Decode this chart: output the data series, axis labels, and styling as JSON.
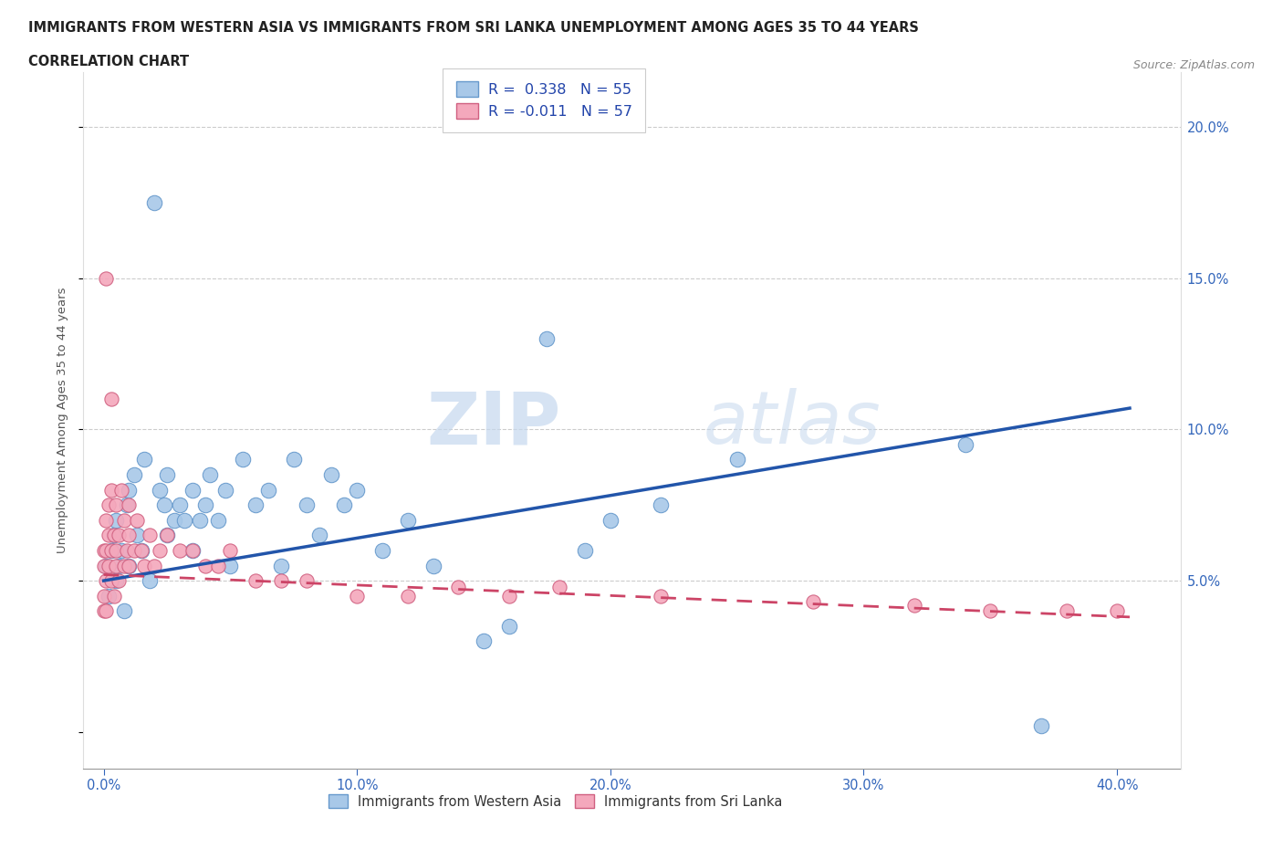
{
  "title_line1": "IMMIGRANTS FROM WESTERN ASIA VS IMMIGRANTS FROM SRI LANKA UNEMPLOYMENT AMONG AGES 35 TO 44 YEARS",
  "title_line2": "CORRELATION CHART",
  "source_text": "Source: ZipAtlas.com",
  "ylabel": "Unemployment Among Ages 35 to 44 years",
  "x_tick_labels": [
    "0.0%",
    "10.0%",
    "20.0%",
    "30.0%",
    "40.0%"
  ],
  "x_tick_values": [
    0.0,
    0.1,
    0.2,
    0.3,
    0.4
  ],
  "y_tick_labels": [
    "5.0%",
    "10.0%",
    "15.0%",
    "20.0%"
  ],
  "y_tick_values": [
    0.05,
    0.1,
    0.15,
    0.2
  ],
  "xlim": [
    -0.008,
    0.425
  ],
  "ylim": [
    -0.012,
    0.218
  ],
  "western_asia_color": "#a8c8e8",
  "western_asia_edge_color": "#6699cc",
  "sri_lanka_color": "#f4a8bc",
  "sri_lanka_edge_color": "#d06080",
  "trend_blue_color": "#2255aa",
  "trend_pink_color": "#cc4466",
  "legend_r1": "R =  0.338   N = 55",
  "legend_r2": "R = -0.011   N = 57",
  "legend_label1": "Immigrants from Western Asia",
  "legend_label2": "Immigrants from Sri Lanka",
  "watermark_zip": "ZIP",
  "watermark_atlas": "atlas",
  "wa_trend_start_y": 0.05,
  "wa_trend_end_y": 0.107,
  "sl_trend_start_y": 0.052,
  "sl_trend_end_y": 0.038,
  "western_asia_x": [
    0.001,
    0.002,
    0.003,
    0.004,
    0.005,
    0.005,
    0.006,
    0.007,
    0.008,
    0.009,
    0.01,
    0.01,
    0.012,
    0.013,
    0.015,
    0.016,
    0.018,
    0.02,
    0.022,
    0.024,
    0.025,
    0.025,
    0.028,
    0.03,
    0.032,
    0.035,
    0.035,
    0.038,
    0.04,
    0.042,
    0.045,
    0.048,
    0.05,
    0.055,
    0.06,
    0.065,
    0.07,
    0.075,
    0.08,
    0.085,
    0.09,
    0.095,
    0.1,
    0.11,
    0.12,
    0.13,
    0.15,
    0.16,
    0.175,
    0.19,
    0.2,
    0.22,
    0.25,
    0.34,
    0.37
  ],
  "western_asia_y": [
    0.055,
    0.045,
    0.06,
    0.065,
    0.05,
    0.07,
    0.055,
    0.06,
    0.04,
    0.075,
    0.055,
    0.08,
    0.085,
    0.065,
    0.06,
    0.09,
    0.05,
    0.175,
    0.08,
    0.075,
    0.065,
    0.085,
    0.07,
    0.075,
    0.07,
    0.06,
    0.08,
    0.07,
    0.075,
    0.085,
    0.07,
    0.08,
    0.055,
    0.09,
    0.075,
    0.08,
    0.055,
    0.09,
    0.075,
    0.065,
    0.085,
    0.075,
    0.08,
    0.06,
    0.07,
    0.055,
    0.03,
    0.035,
    0.13,
    0.06,
    0.07,
    0.075,
    0.09,
    0.095,
    0.002
  ],
  "sri_lanka_x": [
    0.0,
    0.0,
    0.0,
    0.0,
    0.001,
    0.001,
    0.001,
    0.001,
    0.001,
    0.002,
    0.002,
    0.002,
    0.003,
    0.003,
    0.003,
    0.003,
    0.004,
    0.004,
    0.005,
    0.005,
    0.005,
    0.006,
    0.006,
    0.007,
    0.008,
    0.008,
    0.009,
    0.01,
    0.01,
    0.01,
    0.012,
    0.013,
    0.015,
    0.016,
    0.018,
    0.02,
    0.022,
    0.025,
    0.03,
    0.035,
    0.04,
    0.045,
    0.05,
    0.06,
    0.07,
    0.08,
    0.1,
    0.12,
    0.14,
    0.16,
    0.18,
    0.22,
    0.28,
    0.32,
    0.35,
    0.38,
    0.4
  ],
  "sri_lanka_y": [
    0.055,
    0.04,
    0.06,
    0.045,
    0.15,
    0.06,
    0.07,
    0.05,
    0.04,
    0.055,
    0.065,
    0.075,
    0.11,
    0.05,
    0.06,
    0.08,
    0.045,
    0.065,
    0.055,
    0.06,
    0.075,
    0.05,
    0.065,
    0.08,
    0.055,
    0.07,
    0.06,
    0.055,
    0.065,
    0.075,
    0.06,
    0.07,
    0.06,
    0.055,
    0.065,
    0.055,
    0.06,
    0.065,
    0.06,
    0.06,
    0.055,
    0.055,
    0.06,
    0.05,
    0.05,
    0.05,
    0.045,
    0.045,
    0.048,
    0.045,
    0.048,
    0.045,
    0.043,
    0.042,
    0.04,
    0.04,
    0.04
  ]
}
